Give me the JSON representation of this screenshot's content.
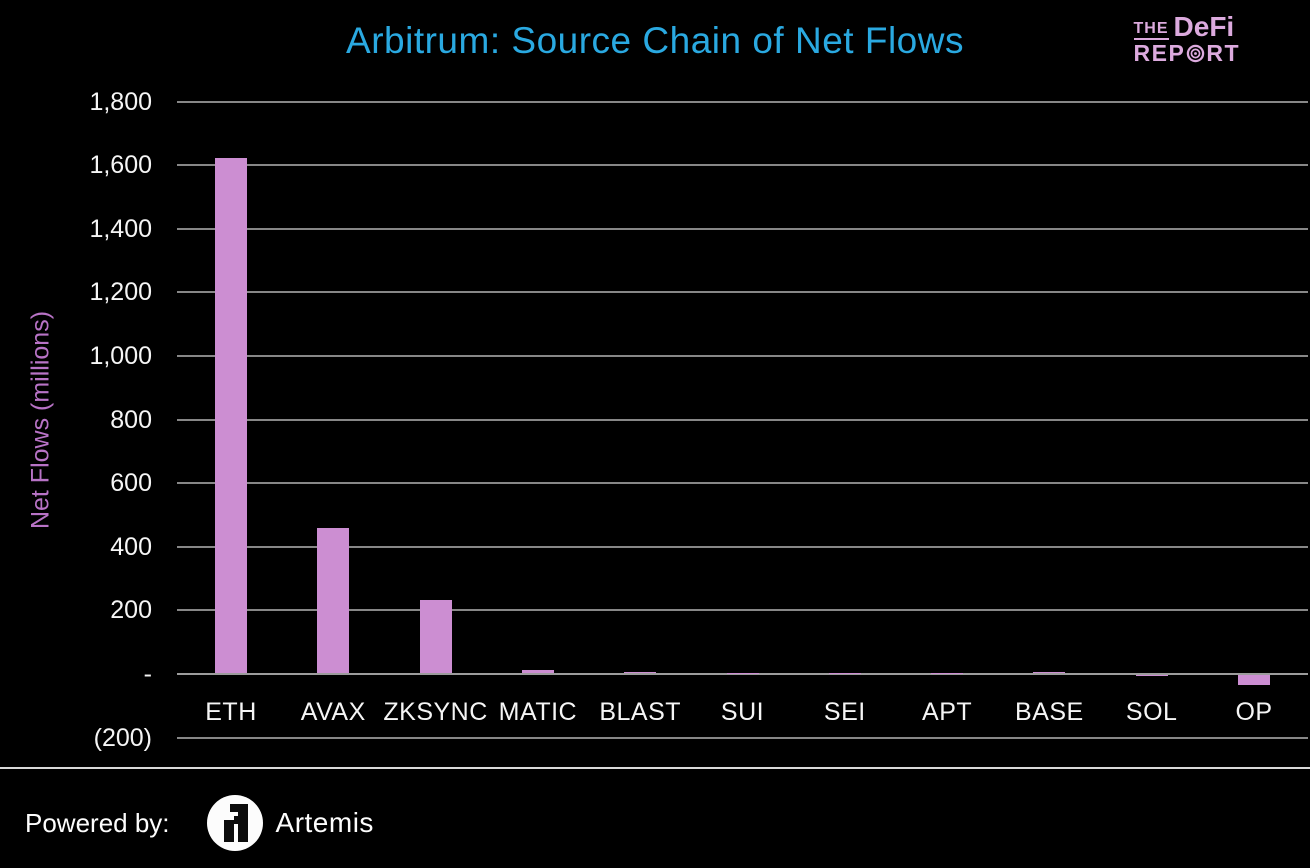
{
  "header": {
    "title": "Arbitrum: Source Chain of Net Flows",
    "logo": {
      "the": "THE",
      "defi": "DeFi",
      "report_pre": "REP",
      "report_post": "RT"
    }
  },
  "chart_data": {
    "type": "bar",
    "title": "Arbitrum: Source Chain of Net Flows",
    "xlabel": "",
    "ylabel": "Net Flows (millions)",
    "categories": [
      "ETH",
      "AVAX",
      "ZKSYNC",
      "MATIC",
      "BLAST",
      "SUI",
      "SEI",
      "APT",
      "BASE",
      "SOL",
      "OP"
    ],
    "values": [
      1620,
      455,
      230,
      8,
      3,
      1,
      1,
      1,
      2,
      -4,
      -30
    ],
    "ylim": [
      -200,
      1800
    ],
    "ytick_values": [
      1800,
      1600,
      1400,
      1200,
      1000,
      800,
      600,
      400,
      200,
      0,
      -200
    ],
    "ytick_labels": [
      "1,800",
      "1,600",
      "1,400",
      "1,200",
      "1,000",
      "800",
      "600",
      "400",
      "200",
      "-",
      "(200)"
    ],
    "grid": true,
    "legend_position": "none",
    "bar_color": "#cc8ed2"
  },
  "footer": {
    "powered_by": "Powered by:",
    "brand": "Artemis"
  },
  "colors": {
    "background": "#000000",
    "title": "#2aa9e1",
    "logo_pink": "#dcaade",
    "axis_title": "#b873c6",
    "bar": "#cc8ed2",
    "gridline": "#878787",
    "text": "#f5f5f5",
    "separator": "#d9d9d9"
  }
}
